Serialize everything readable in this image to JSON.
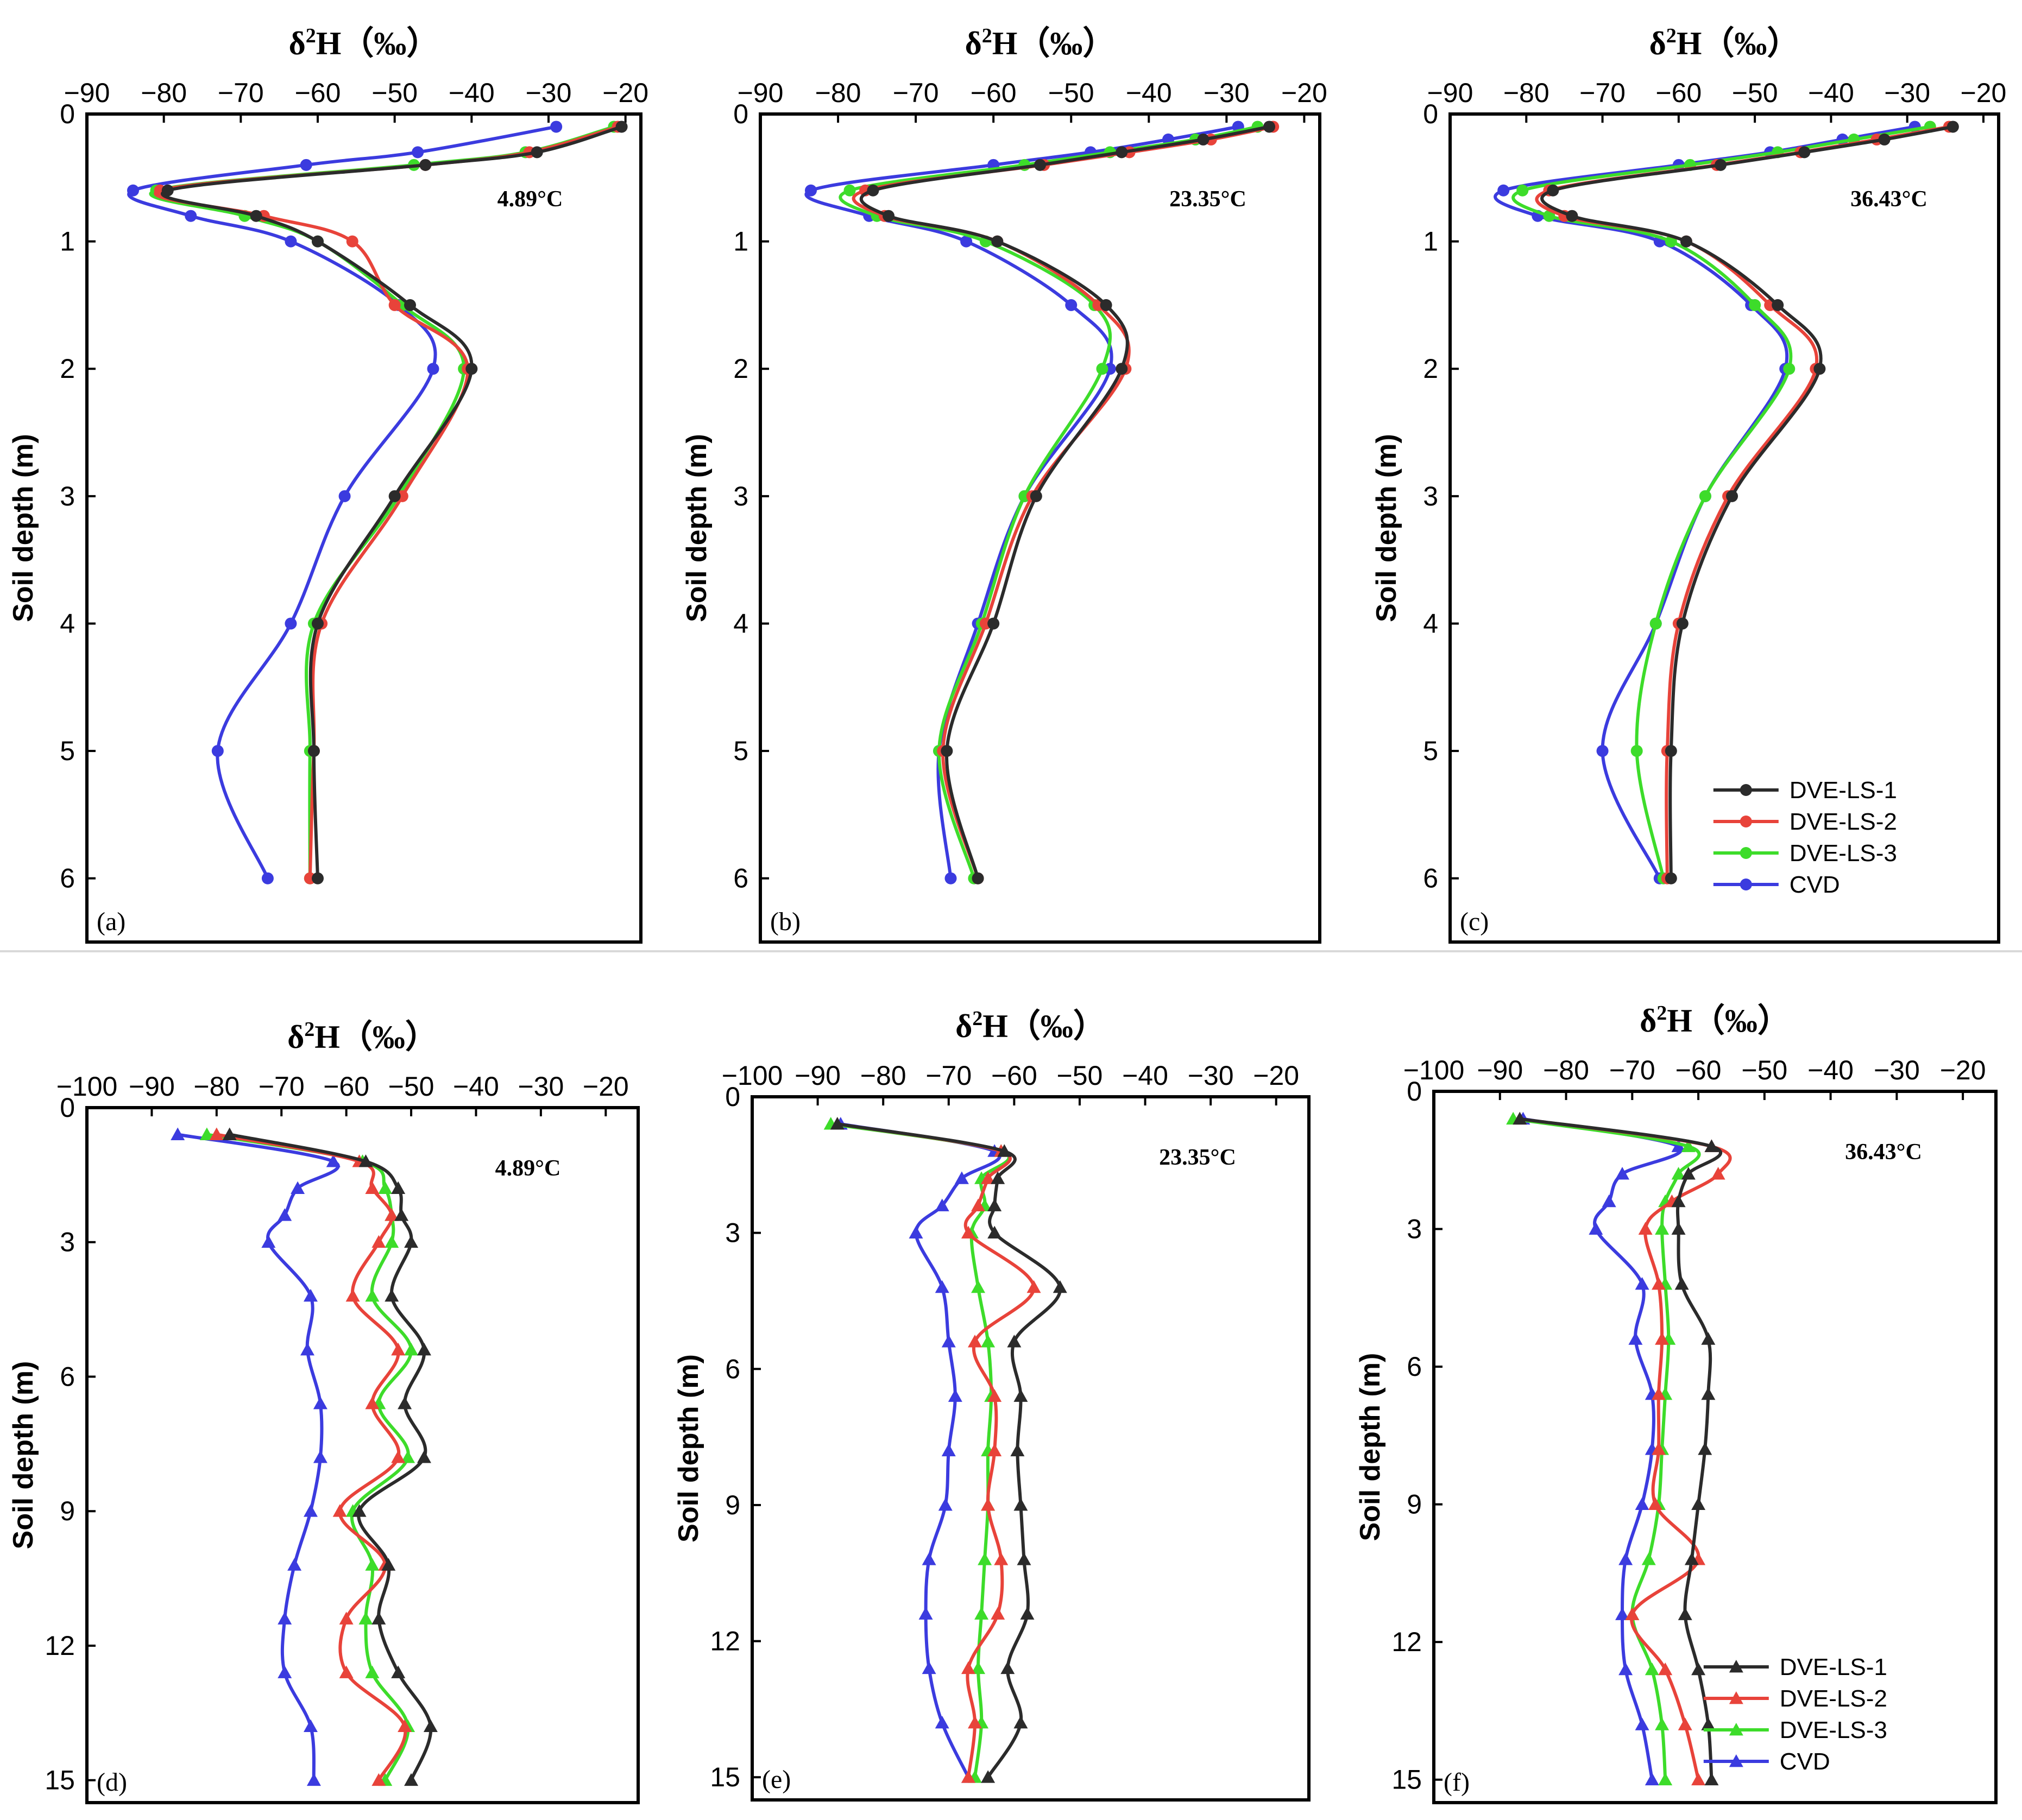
{
  "figure": {
    "xlabel_prefix": "δ",
    "xlabel_sup": "2",
    "xlabel_suffix": "H（‰）",
    "ylabel": "Soil depth (m)",
    "legend": [
      "DVE-LS-1",
      "DVE-LS-2",
      "DVE-LS-3",
      "CVD"
    ],
    "colors": {
      "DVE-LS-1": "#2b2b2b",
      "DVE-LS-2": "#e8433a",
      "DVE-LS-3": "#3ddc2a",
      "CVD": "#3b3bdf"
    }
  },
  "chart_data": [
    {
      "type": "line",
      "panel_label": "(a)",
      "temperature": "4.89°C",
      "xlim": [
        -90,
        -18
      ],
      "ylim": [
        0,
        6.5
      ],
      "xticks": [
        -90,
        -80,
        -70,
        -60,
        -50,
        -40,
        -30,
        -20
      ],
      "yticks": [
        0,
        1,
        2,
        3,
        4,
        5,
        6
      ],
      "marker": "circle",
      "depths": [
        0.1,
        0.3,
        0.4,
        0.6,
        0.8,
        1.0,
        1.5,
        2.0,
        3.0,
        4.0,
        5.0,
        6.0
      ],
      "series": [
        {
          "name": "DVE-LS-1",
          "values": [
            -20.5,
            -31.5,
            -46,
            -79.5,
            -68,
            -60,
            -48,
            -40,
            -50,
            -60,
            -60.5,
            -60
          ]
        },
        {
          "name": "DVE-LS-2",
          "values": [
            -21,
            -32.5,
            -46,
            -80.5,
            -67,
            -55.5,
            -50,
            -40.5,
            -49,
            -59.5,
            -60.5,
            -61
          ]
        },
        {
          "name": "DVE-LS-3",
          "values": [
            -21.5,
            -33,
            -47.5,
            -81,
            -69.5,
            -60,
            -49,
            -41,
            -49.5,
            -60.5,
            -61,
            -61
          ]
        },
        {
          "name": "CVD",
          "values": [
            -29,
            -47,
            -61.5,
            -84,
            -76.5,
            -63.5,
            -49.5,
            -45,
            -56.5,
            -63.5,
            -73,
            -66.5
          ]
        }
      ]
    },
    {
      "type": "line",
      "panel_label": "(b)",
      "temperature": "23.35°C",
      "xlim": [
        -90,
        -18
      ],
      "ylim": [
        0,
        6.5
      ],
      "xticks": [
        -90,
        -80,
        -70,
        -60,
        -50,
        -40,
        -30,
        -20
      ],
      "yticks": [
        0,
        1,
        2,
        3,
        4,
        5,
        6
      ],
      "marker": "circle",
      "depths": [
        0.1,
        0.2,
        0.3,
        0.4,
        0.6,
        0.8,
        1.0,
        1.5,
        2.0,
        3.0,
        4.0,
        5.0,
        6.0
      ],
      "series": [
        {
          "name": "DVE-LS-1",
          "values": [
            -24.5,
            -33,
            -43.5,
            -54,
            -75.5,
            -73.5,
            -59.5,
            -45.5,
            -43.5,
            -54.5,
            -60,
            -66,
            -62
          ]
        },
        {
          "name": "DVE-LS-2",
          "values": [
            -24,
            -32,
            -42.5,
            -53.5,
            -76.5,
            -74,
            -59.5,
            -46.5,
            -43,
            -55,
            -61,
            -66.5,
            -62
          ]
        },
        {
          "name": "DVE-LS-3",
          "values": [
            -26,
            -34,
            -45,
            -56,
            -78.5,
            -75,
            -61,
            -47,
            -46,
            -56,
            -61.5,
            -67,
            -62.5
          ]
        },
        {
          "name": "CVD",
          "values": [
            -28.5,
            -37.5,
            -47.5,
            -60,
            -83.5,
            -76,
            -63.5,
            -50,
            -45,
            -56,
            -62,
            -67,
            -65.5
          ]
        }
      ]
    },
    {
      "type": "line",
      "panel_label": "(c)",
      "temperature": "36.43°C",
      "xlim": [
        -90,
        -18
      ],
      "ylim": [
        0,
        6.5
      ],
      "xticks": [
        -90,
        -80,
        -70,
        -60,
        -50,
        -40,
        -30,
        -20
      ],
      "yticks": [
        0,
        1,
        2,
        3,
        4,
        5,
        6
      ],
      "marker": "circle",
      "depths": [
        0.1,
        0.2,
        0.3,
        0.4,
        0.6,
        0.8,
        1.0,
        1.5,
        2.0,
        3.0,
        4.0,
        5.0,
        6.0
      ],
      "series": [
        {
          "name": "DVE-LS-1",
          "values": [
            -24,
            -33,
            -43.5,
            -54.5,
            -76.5,
            -74,
            -59,
            -47,
            -41.5,
            -53,
            -59.5,
            -61,
            -61
          ]
        },
        {
          "name": "DVE-LS-2",
          "values": [
            -24.5,
            -34,
            -44,
            -55,
            -77,
            -75,
            -59,
            -48,
            -42,
            -53.5,
            -60,
            -61.5,
            -61.5
          ]
        },
        {
          "name": "DVE-LS-3",
          "values": [
            -27,
            -37,
            -47,
            -58.5,
            -80.5,
            -77,
            -61,
            -50,
            -45.5,
            -56.5,
            -63,
            -65.5,
            -62
          ]
        },
        {
          "name": "CVD",
          "values": [
            -29,
            -38.5,
            -48,
            -60,
            -83,
            -78.5,
            -62.5,
            -50.5,
            -46,
            -56.5,
            -63,
            -70,
            -62.5
          ]
        }
      ]
    },
    {
      "type": "line",
      "panel_label": "(d)",
      "temperature": "4.89°C",
      "xlim": [
        -100,
        -15
      ],
      "ylim": [
        0,
        15.5
      ],
      "xticks": [
        -100,
        -90,
        -80,
        -70,
        -60,
        -50,
        -40,
        -30,
        -20
      ],
      "yticks": [
        0,
        3,
        6,
        9,
        12,
        15
      ],
      "marker": "triangle",
      "depths": [
        0.6,
        1.2,
        1.8,
        2.4,
        3.0,
        4.2,
        5.4,
        6.6,
        7.8,
        9.0,
        10.2,
        11.4,
        12.6,
        13.8,
        15.0
      ],
      "series": [
        {
          "name": "DVE-LS-1",
          "values": [
            -78,
            -57,
            -52,
            -51.5,
            -50,
            -53,
            -48,
            -51,
            -48,
            -58,
            -53.5,
            -55,
            -52,
            -47,
            -50
          ]
        },
        {
          "name": "DVE-LS-2",
          "values": [
            -80,
            -58,
            -56,
            -53,
            -55,
            -59,
            -52,
            -56,
            -52,
            -61,
            -54,
            -60,
            -60,
            -51,
            -55
          ]
        },
        {
          "name": "DVE-LS-3",
          "values": [
            -81.5,
            -57.5,
            -54,
            -53,
            -53,
            -56,
            -50,
            -55,
            -50.5,
            -59,
            -56,
            -57,
            -56,
            -50.5,
            -54
          ]
        },
        {
          "name": "CVD",
          "values": [
            -86,
            -62,
            -67.5,
            -69.5,
            -72,
            -65.5,
            -66,
            -64,
            -64,
            -65.5,
            -68,
            -69.5,
            -69.5,
            -65.5,
            -65
          ]
        }
      ]
    },
    {
      "type": "line",
      "panel_label": "(e)",
      "temperature": "23.35°C",
      "xlim": [
        -100,
        -15
      ],
      "ylim": [
        0,
        15.5
      ],
      "xticks": [
        -100,
        -90,
        -80,
        -70,
        -60,
        -50,
        -40,
        -30,
        -20
      ],
      "yticks": [
        0,
        3,
        6,
        9,
        12,
        15
      ],
      "marker": "triangle",
      "depths": [
        0.6,
        1.2,
        1.8,
        2.4,
        3.0,
        4.2,
        5.4,
        6.6,
        7.8,
        9.0,
        10.2,
        11.4,
        12.6,
        13.8,
        15.0
      ],
      "series": [
        {
          "name": "DVE-LS-1",
          "values": [
            -87,
            -61.5,
            -62.5,
            -63,
            -63,
            -53,
            -60,
            -59,
            -59.5,
            -59,
            -58.5,
            -58,
            -61,
            -59,
            -64
          ]
        },
        {
          "name": "DVE-LS-2",
          "values": [
            -87,
            -62,
            -64,
            -65.5,
            -67,
            -57,
            -66,
            -63,
            -63,
            -64,
            -62,
            -62.5,
            -67,
            -66,
            -67
          ]
        },
        {
          "name": "DVE-LS-3",
          "values": [
            -88,
            -62,
            -65,
            -64.5,
            -66.5,
            -65.5,
            -64,
            -63.5,
            -64,
            -64,
            -64.5,
            -65,
            -65.5,
            -65,
            -66
          ]
        },
        {
          "name": "CVD",
          "values": [
            -86.5,
            -63,
            -68,
            -71,
            -75,
            -71,
            -70,
            -69,
            -70,
            -70.5,
            -73,
            -73.5,
            -73,
            -71,
            -67
          ]
        }
      ]
    },
    {
      "type": "line",
      "panel_label": "(f)",
      "temperature": "36.43°C",
      "xlim": [
        -100,
        -15
      ],
      "ylim": [
        0,
        15.5
      ],
      "xticks": [
        -100,
        -90,
        -80,
        -70,
        -60,
        -50,
        -40,
        -30,
        -20
      ],
      "yticks": [
        0,
        3,
        6,
        9,
        12,
        15
      ],
      "marker": "triangle",
      "depths": [
        0.6,
        1.2,
        1.8,
        2.4,
        3.0,
        4.2,
        5.4,
        6.6,
        7.8,
        9.0,
        10.2,
        11.4,
        12.6,
        13.8,
        15.0
      ],
      "series": [
        {
          "name": "DVE-LS-1",
          "values": [
            -87,
            -58,
            -61.5,
            -63,
            -63,
            -62.5,
            -58.5,
            -58.5,
            -59,
            -60,
            -61,
            -62,
            -60,
            -58.5,
            -58
          ]
        },
        {
          "name": "DVE-LS-2",
          "values": [
            -87,
            -58,
            -57,
            -64,
            -68,
            -66,
            -65.5,
            -66,
            -66,
            -66.5,
            -60,
            -70,
            -65,
            -62,
            -60
          ]
        },
        {
          "name": "DVE-LS-3",
          "values": [
            -88,
            -61.5,
            -63,
            -65,
            -65.5,
            -65,
            -64.5,
            -65,
            -65.5,
            -66,
            -67.5,
            -70,
            -67,
            -65.5,
            -65
          ]
        },
        {
          "name": "CVD",
          "values": [
            -86.5,
            -63,
            -71.5,
            -73.5,
            -75.5,
            -68.5,
            -69.5,
            -67,
            -67,
            -68.5,
            -71,
            -71.5,
            -71,
            -68.5,
            -67
          ]
        }
      ]
    }
  ]
}
